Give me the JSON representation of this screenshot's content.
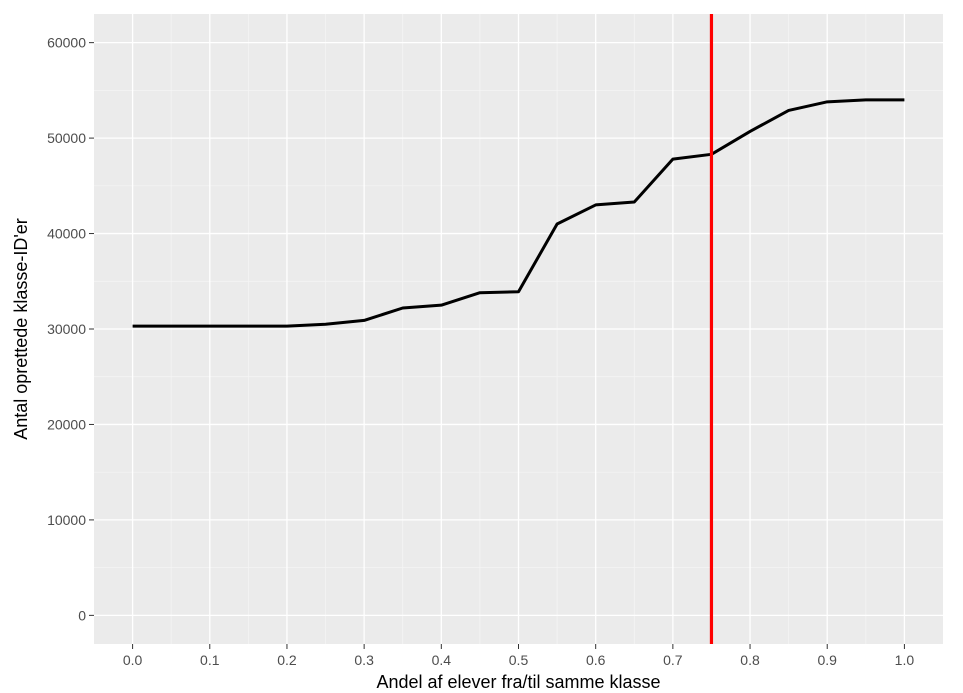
{
  "chart_data": {
    "type": "line",
    "title": "",
    "xlabel": "Andel af elever fra/til samme klasse",
    "ylabel": "Antal oprettede klasse-ID'er",
    "xlim": [
      -0.05,
      1.05
    ],
    "ylim": [
      -3000,
      63000
    ],
    "x_ticks": [
      0.0,
      0.1,
      0.2,
      0.3,
      0.4,
      0.5,
      0.6,
      0.7,
      0.8,
      0.9,
      1.0
    ],
    "x_tick_labels": [
      "0.0",
      "0.1",
      "0.2",
      "0.3",
      "0.4",
      "0.5",
      "0.6",
      "0.7",
      "0.8",
      "0.9",
      "1.0"
    ],
    "y_ticks": [
      0,
      10000,
      20000,
      30000,
      40000,
      50000,
      60000
    ],
    "y_tick_labels": [
      "0",
      "10000",
      "20000",
      "30000",
      "40000",
      "50000",
      "60000"
    ],
    "grid": true,
    "legend": "none",
    "series": [
      {
        "color": "#000000",
        "x": [
          0.0,
          0.05,
          0.1,
          0.15,
          0.2,
          0.25,
          0.3,
          0.35,
          0.4,
          0.45,
          0.5,
          0.55,
          0.6,
          0.65,
          0.7,
          0.75,
          0.8,
          0.85,
          0.9,
          0.95,
          1.0
        ],
        "y": [
          30300,
          30300,
          30300,
          30300,
          30300,
          30500,
          30900,
          32200,
          32500,
          33800,
          33900,
          41000,
          43000,
          43300,
          47800,
          48300,
          50700,
          52900,
          53800,
          54000,
          54000
        ]
      }
    ],
    "vline": {
      "x": 0.75,
      "color": "#ff0000"
    },
    "colors": {
      "panel_background": "#ebebeb",
      "grid_major": "#ffffff",
      "grid_minor": "#f5f5f5",
      "tick_text": "#4d4d4d",
      "tick_mark": "#333333"
    }
  }
}
